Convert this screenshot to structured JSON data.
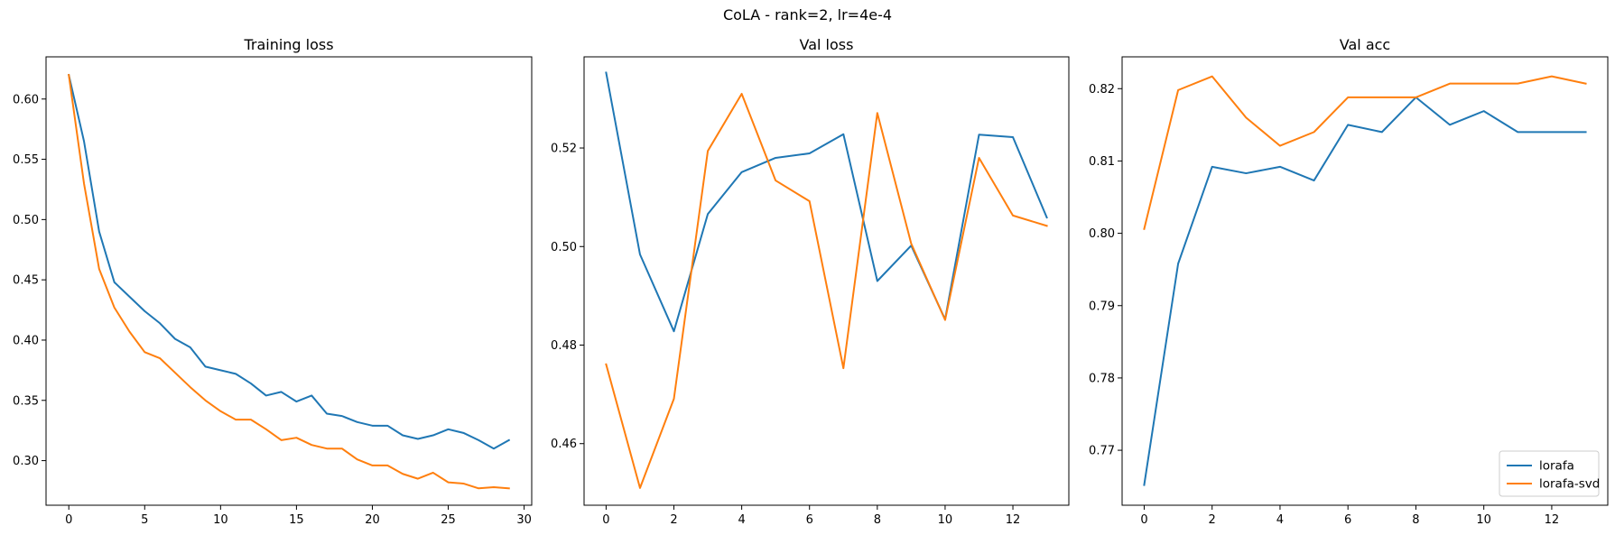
{
  "figure": {
    "title": "CoLA - rank=2, lr=4e-4"
  },
  "chart_data": [
    {
      "type": "line",
      "title": "Training loss",
      "xlabel": "",
      "ylabel": "",
      "xlim": [
        -1.5,
        30.5
      ],
      "ylim": [
        0.263,
        0.635
      ],
      "xticks": [
        0,
        5,
        10,
        15,
        20,
        25,
        30
      ],
      "yticks": [
        0.3,
        0.35,
        0.4,
        0.45,
        0.5,
        0.55,
        0.6
      ],
      "ytick_decimals": 2,
      "grid": false,
      "legend": false,
      "x": [
        0,
        1,
        2,
        3,
        4,
        5,
        6,
        7,
        8,
        9,
        10,
        11,
        12,
        13,
        14,
        15,
        16,
        17,
        18,
        19,
        20,
        21,
        22,
        23,
        24,
        25,
        26,
        27,
        28,
        29
      ],
      "series": [
        {
          "name": "lorafa",
          "color": "#1f77b4",
          "values": [
            0.62,
            0.565,
            0.49,
            0.448,
            0.436,
            0.424,
            0.414,
            0.401,
            0.394,
            0.378,
            0.375,
            0.372,
            0.364,
            0.354,
            0.357,
            0.349,
            0.354,
            0.339,
            0.337,
            0.332,
            0.329,
            0.329,
            0.321,
            0.318,
            0.321,
            0.326,
            0.323,
            0.317,
            0.31,
            0.317
          ]
        },
        {
          "name": "lorafa-svd",
          "color": "#ff7f0e",
          "values": [
            0.62,
            0.53,
            0.459,
            0.427,
            0.407,
            0.39,
            0.385,
            0.373,
            0.361,
            0.35,
            0.341,
            0.334,
            0.334,
            0.326,
            0.317,
            0.319,
            0.313,
            0.31,
            0.31,
            0.301,
            0.296,
            0.296,
            0.289,
            0.285,
            0.29,
            0.282,
            0.281,
            0.277,
            0.278,
            0.277
          ]
        }
      ]
    },
    {
      "type": "line",
      "title": "Val loss",
      "xlabel": "",
      "ylabel": "",
      "xlim": [
        -0.65,
        13.65
      ],
      "ylim": [
        0.4475,
        0.5385
      ],
      "xticks": [
        0,
        2,
        4,
        6,
        8,
        10,
        12
      ],
      "yticks": [
        0.46,
        0.48,
        0.5,
        0.52
      ],
      "ytick_decimals": 2,
      "grid": false,
      "legend": false,
      "x": [
        0,
        1,
        2,
        3,
        4,
        5,
        6,
        7,
        8,
        9,
        10,
        11,
        12,
        13
      ],
      "series": [
        {
          "name": "lorafa",
          "color": "#1f77b4",
          "values": [
            0.5353,
            0.4984,
            0.4828,
            0.5066,
            0.5151,
            0.518,
            0.5189,
            0.5228,
            0.493,
            0.5002,
            0.4852,
            0.5227,
            0.5222,
            0.5059
          ]
        },
        {
          "name": "lorafa-svd",
          "color": "#ff7f0e",
          "values": [
            0.4761,
            0.451,
            0.4691,
            0.5194,
            0.531,
            0.5134,
            0.5092,
            0.4753,
            0.5271,
            0.5006,
            0.4851,
            0.518,
            0.5063,
            0.5042
          ]
        }
      ]
    },
    {
      "type": "line",
      "title": "Val acc",
      "xlabel": "",
      "ylabel": "",
      "xlim": [
        -0.65,
        13.65
      ],
      "ylim": [
        0.7624,
        0.8244
      ],
      "xticks": [
        0,
        2,
        4,
        6,
        8,
        10,
        12
      ],
      "yticks": [
        0.77,
        0.78,
        0.79,
        0.8,
        0.81,
        0.82
      ],
      "ytick_decimals": 2,
      "grid": false,
      "legend": true,
      "legend_loc": "lower right",
      "x": [
        0,
        1,
        2,
        3,
        4,
        5,
        6,
        7,
        8,
        9,
        10,
        11,
        12,
        13
      ],
      "series": [
        {
          "name": "lorafa",
          "color": "#1f77b4",
          "values": [
            0.7652,
            0.7958,
            0.8092,
            0.8083,
            0.8092,
            0.8073,
            0.815,
            0.814,
            0.8188,
            0.815,
            0.8169,
            0.814,
            0.814,
            0.814
          ]
        },
        {
          "name": "lorafa-svd",
          "color": "#ff7f0e",
          "values": [
            0.8006,
            0.8198,
            0.8217,
            0.816,
            0.8121,
            0.814,
            0.8188,
            0.8188,
            0.8188,
            0.8207,
            0.8207,
            0.8207,
            0.8217,
            0.8207
          ]
        }
      ]
    }
  ]
}
